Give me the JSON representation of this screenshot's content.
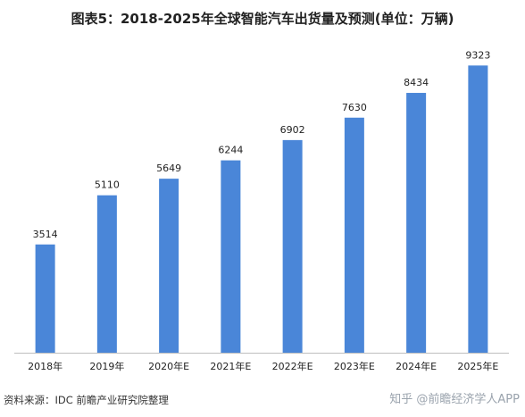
{
  "chart_data": {
    "type": "bar",
    "title": "图表5：2018-2025年全球智能汽车出货量及预测(单位：万辆)",
    "categories": [
      "2018年",
      "2019年",
      "2020年E",
      "2021年E",
      "2022年E",
      "2023年E",
      "2024年E",
      "2025年E"
    ],
    "values": [
      3514,
      5110,
      5649,
      6244,
      6902,
      7630,
      8434,
      9323
    ],
    "xlabel": "",
    "ylabel": "",
    "ylim": [
      0,
      10000
    ],
    "grid": false,
    "bar_color": "#4a86d8"
  },
  "source": "资料来源：IDC 前瞻产业研究院整理",
  "watermark": "知乎 @前瞻经济学人APP"
}
